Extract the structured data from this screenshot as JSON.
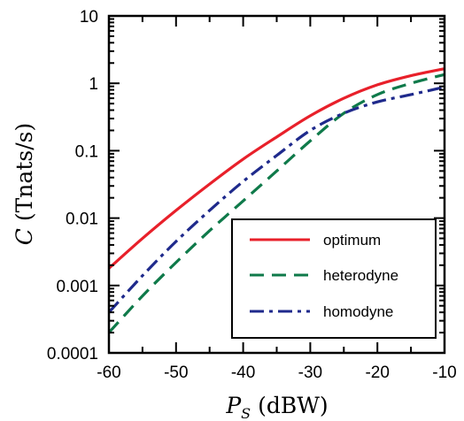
{
  "chart_data": {
    "type": "line",
    "xlabel": "P_S (dBW)",
    "ylabel": "C (Tnats/s)",
    "xlim": [
      -60,
      -10
    ],
    "ylim": [
      0.0001,
      10
    ],
    "yscale": "log",
    "grid": false,
    "legend_position": "lower-right",
    "x_ticks": [
      "-60",
      "-50",
      "-40",
      "-30",
      "-20",
      "-10"
    ],
    "y_ticks": [
      "0.0001",
      "0.001",
      "0.01",
      "0.1",
      "1",
      "10"
    ],
    "x": [
      -60,
      -55,
      -50,
      -45,
      -40,
      -35,
      -30,
      -25,
      -20,
      -15,
      -10
    ],
    "series": [
      {
        "name": "optimum",
        "color": "#e8202a",
        "dash": "solid",
        "values": [
          0.0018,
          0.005,
          0.013,
          0.032,
          0.075,
          0.16,
          0.33,
          0.6,
          0.95,
          1.3,
          1.65
        ]
      },
      {
        "name": "heterodyne",
        "color": "#0f7a4a",
        "dash": "dashed",
        "values": [
          0.0002,
          0.0007,
          0.0022,
          0.0065,
          0.018,
          0.05,
          0.14,
          0.36,
          0.68,
          1.0,
          1.35
        ]
      },
      {
        "name": "homodyne",
        "color": "#1f2a8c",
        "dash": "dashdot",
        "values": [
          0.0004,
          0.0014,
          0.0045,
          0.013,
          0.035,
          0.085,
          0.2,
          0.36,
          0.53,
          0.68,
          0.88
        ]
      }
    ]
  }
}
